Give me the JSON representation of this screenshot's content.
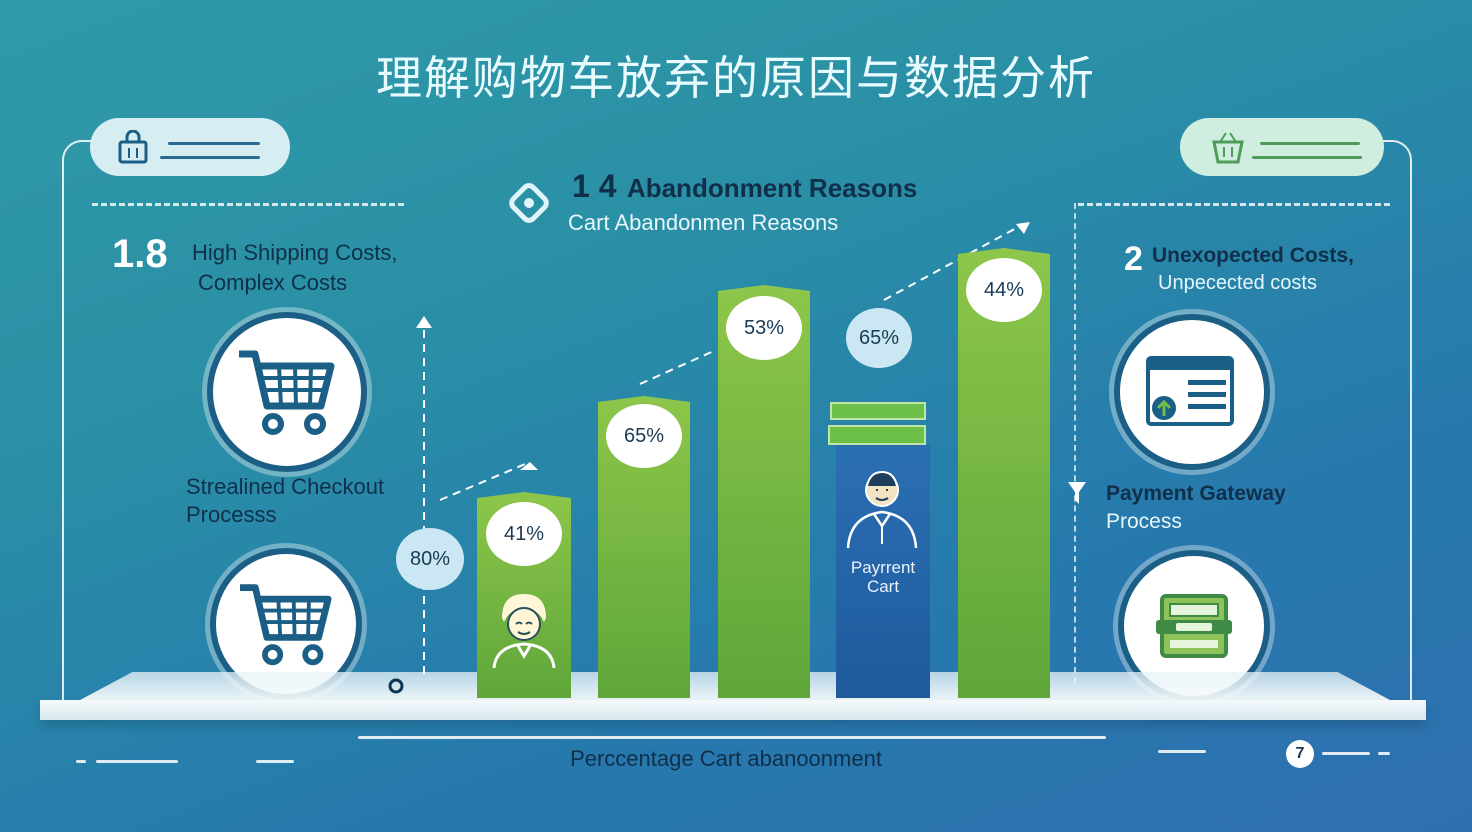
{
  "title": "理解购物车放弃的原因与数据分析",
  "center_heading": {
    "number": "1 4",
    "title": "Abandonment Reasons",
    "subtitle": "Cart Abandonmen Reasons"
  },
  "left_panel": {
    "number": "1.8",
    "line1": "High Shipping Costs,",
    "line2": "Complex Costs",
    "caption_line1": "Strealined Checkout",
    "caption_line2": "Processs"
  },
  "right_panel": {
    "number": "2",
    "line1": "Unexopected Costs,",
    "line2": "Unpecected costs",
    "caption_line1": "Payment Gateway",
    "caption_line2": "Process"
  },
  "side_bubble": "80%",
  "floating_bubble": "65%",
  "payment_bar_label_line1": "Payrrent",
  "payment_bar_label_line2": "Cart",
  "footer_label": "Perccentage Cart abanoonment",
  "footer_badge": "7",
  "colors": {
    "green_bar": "#7bbd45",
    "blue_bar": "#2567aa",
    "accent_dark": "#1b5f86"
  },
  "icons": [
    "shopping-bag-icon",
    "cart-icon",
    "browser-window-icon",
    "payment-terminal-icon",
    "person-icon",
    "basket-icon"
  ],
  "chart_data": {
    "type": "bar",
    "categories": [
      "",
      "",
      "",
      "",
      ""
    ],
    "values": [
      41,
      65,
      53,
      65,
      44
    ],
    "value_labels": [
      "41%",
      "65%",
      "53%",
      "65%",
      "44%"
    ],
    "bar_colors": [
      "#7bbd45",
      "#7bbd45",
      "#7bbd45",
      "#2567aa",
      "#7bbd45"
    ],
    "xlabel": "Perccentage Cart abanoonment",
    "ylabel": "",
    "grid": false
  }
}
